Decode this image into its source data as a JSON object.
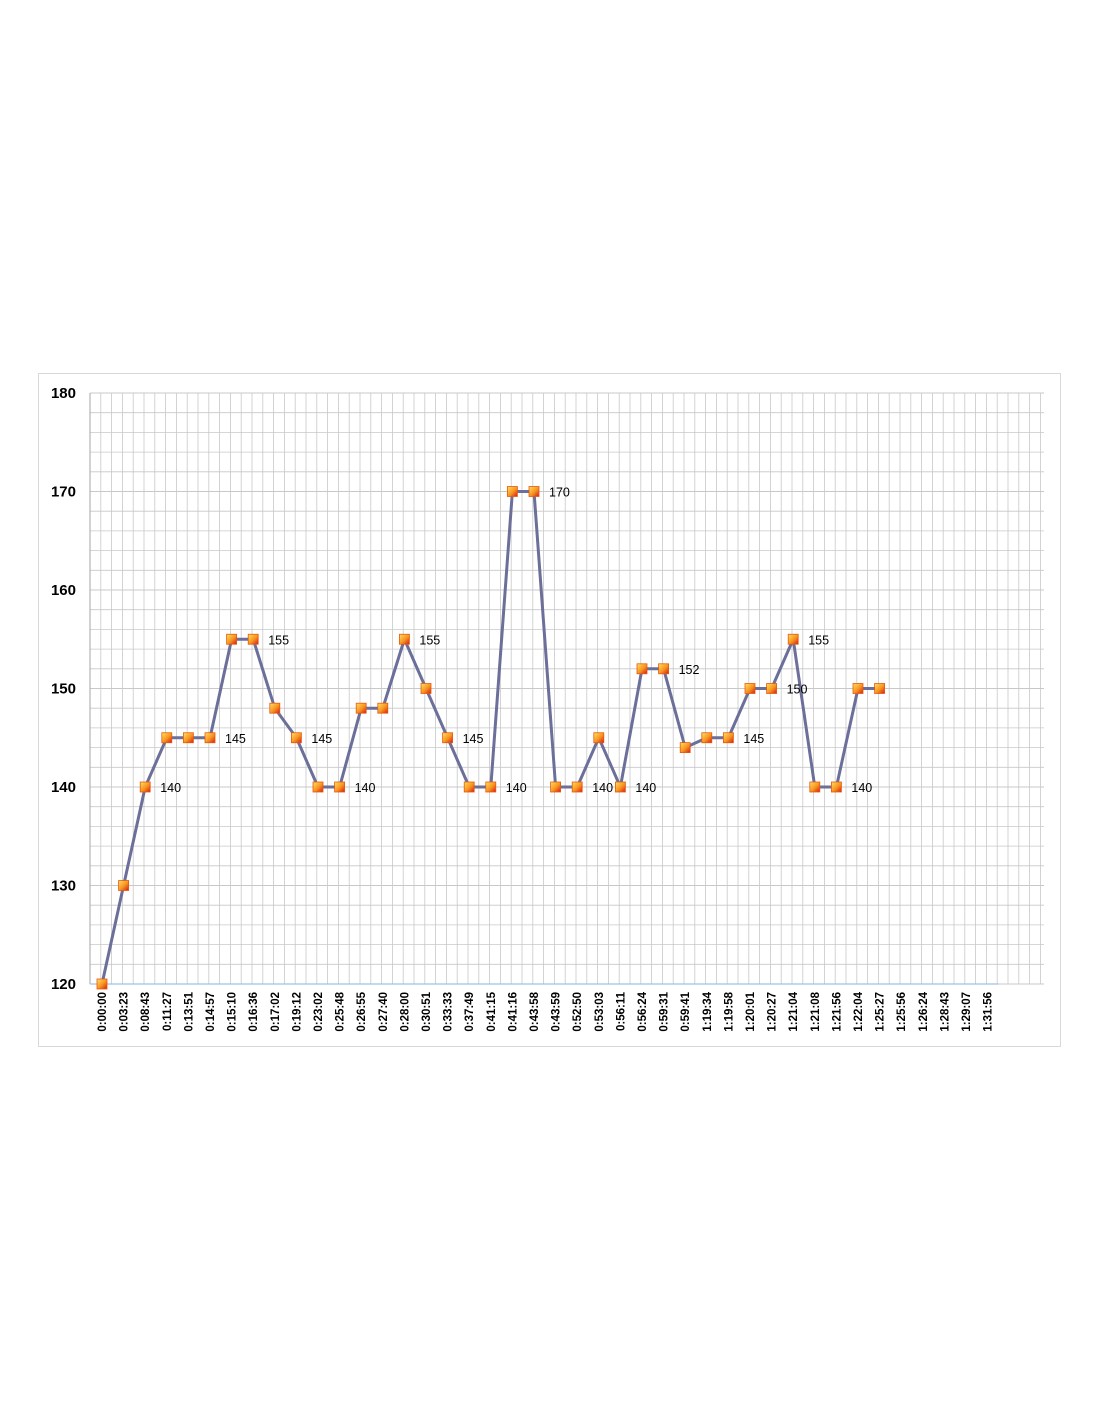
{
  "chart_data": {
    "type": "line",
    "title": "",
    "xlabel": "",
    "ylabel": "",
    "ylim": [
      120,
      180
    ],
    "y_ticks": [
      120,
      130,
      140,
      150,
      160,
      170,
      180
    ],
    "grid": "major and minor gridlines",
    "legend": "none",
    "colors": {
      "line": "#6b6f99",
      "marker": "#f7941d",
      "marker_inner": "#d7191c",
      "grid": "#c8c8c8"
    },
    "categories": [
      "0:00:00",
      "0:03:23",
      "0:08:43",
      "0:11:27",
      "0:13:51",
      "0:14:57",
      "0:15:10",
      "0:16:36",
      "0:17:02",
      "0:19:12",
      "0:23:02",
      "0:25:48",
      "0:26:55",
      "0:27:40",
      "0:28:00",
      "0:30:51",
      "0:33:33",
      "0:37:49",
      "0:41:15",
      "0:41:16",
      "0:43:58",
      "0:43:59",
      "0:52:50",
      "0:53:03",
      "0:56:11",
      "0:56:24",
      "0:59:31",
      "0:59:41",
      "1:19:34",
      "1:19:58",
      "1:20:01",
      "1:20:27",
      "1:21:04",
      "1:21:08",
      "1:21:56",
      "1:22:04",
      "1:25:27",
      "1:25:56",
      "1:26:24",
      "1:28:43",
      "1:29:07",
      "1:31:56"
    ],
    "series": [
      {
        "values": [
          120,
          130,
          140,
          145,
          145,
          145,
          155,
          155,
          148,
          145,
          140,
          140,
          148,
          148,
          155,
          150,
          145,
          140,
          140,
          170,
          170,
          140,
          140,
          145,
          140,
          152,
          152,
          144,
          145,
          145,
          150,
          150,
          155,
          140,
          140,
          150,
          150,
          null,
          null,
          null,
          null,
          null
        ]
      }
    ],
    "data_labels": [
      {
        "index": 2,
        "text": "140"
      },
      {
        "index": 5,
        "text": "145"
      },
      {
        "index": 7,
        "text": "155"
      },
      {
        "index": 9,
        "text": "145"
      },
      {
        "index": 11,
        "text": "140"
      },
      {
        "index": 14,
        "text": "155"
      },
      {
        "index": 16,
        "text": "145"
      },
      {
        "index": 18,
        "text": "140"
      },
      {
        "index": 20,
        "text": "170"
      },
      {
        "index": 22,
        "text": "140"
      },
      {
        "index": 24,
        "text": "140"
      },
      {
        "index": 26,
        "text": "152"
      },
      {
        "index": 29,
        "text": "145"
      },
      {
        "index": 31,
        "text": "150"
      },
      {
        "index": 32,
        "text": "155"
      },
      {
        "index": 34,
        "text": "140"
      }
    ]
  }
}
